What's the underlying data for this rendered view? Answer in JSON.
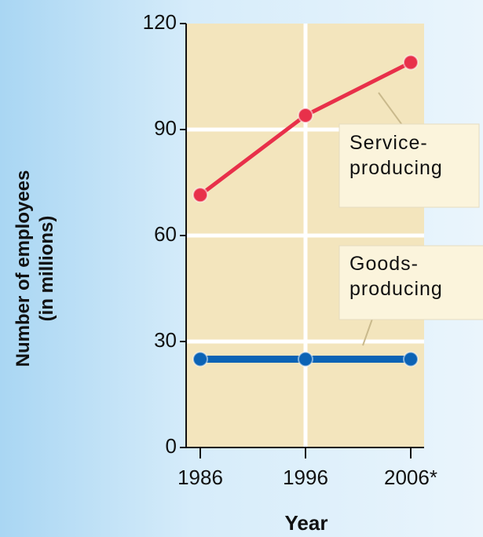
{
  "chart_data": {
    "type": "line",
    "ylabel": [
      "Number of employees",
      "(in millions)"
    ],
    "xlabel": "Year",
    "categories": [
      "1986",
      "1996",
      "2006*"
    ],
    "series": [
      {
        "name": "Service-producing",
        "color": "#e8304a",
        "values": [
          71.5,
          94,
          109
        ]
      },
      {
        "name": "Goods-producing",
        "color": "#0b63b5",
        "values": [
          25,
          25,
          25
        ]
      }
    ],
    "ylim": [
      0,
      120
    ],
    "yticks": [
      0,
      30,
      60,
      90,
      120
    ],
    "grid": true
  }
}
